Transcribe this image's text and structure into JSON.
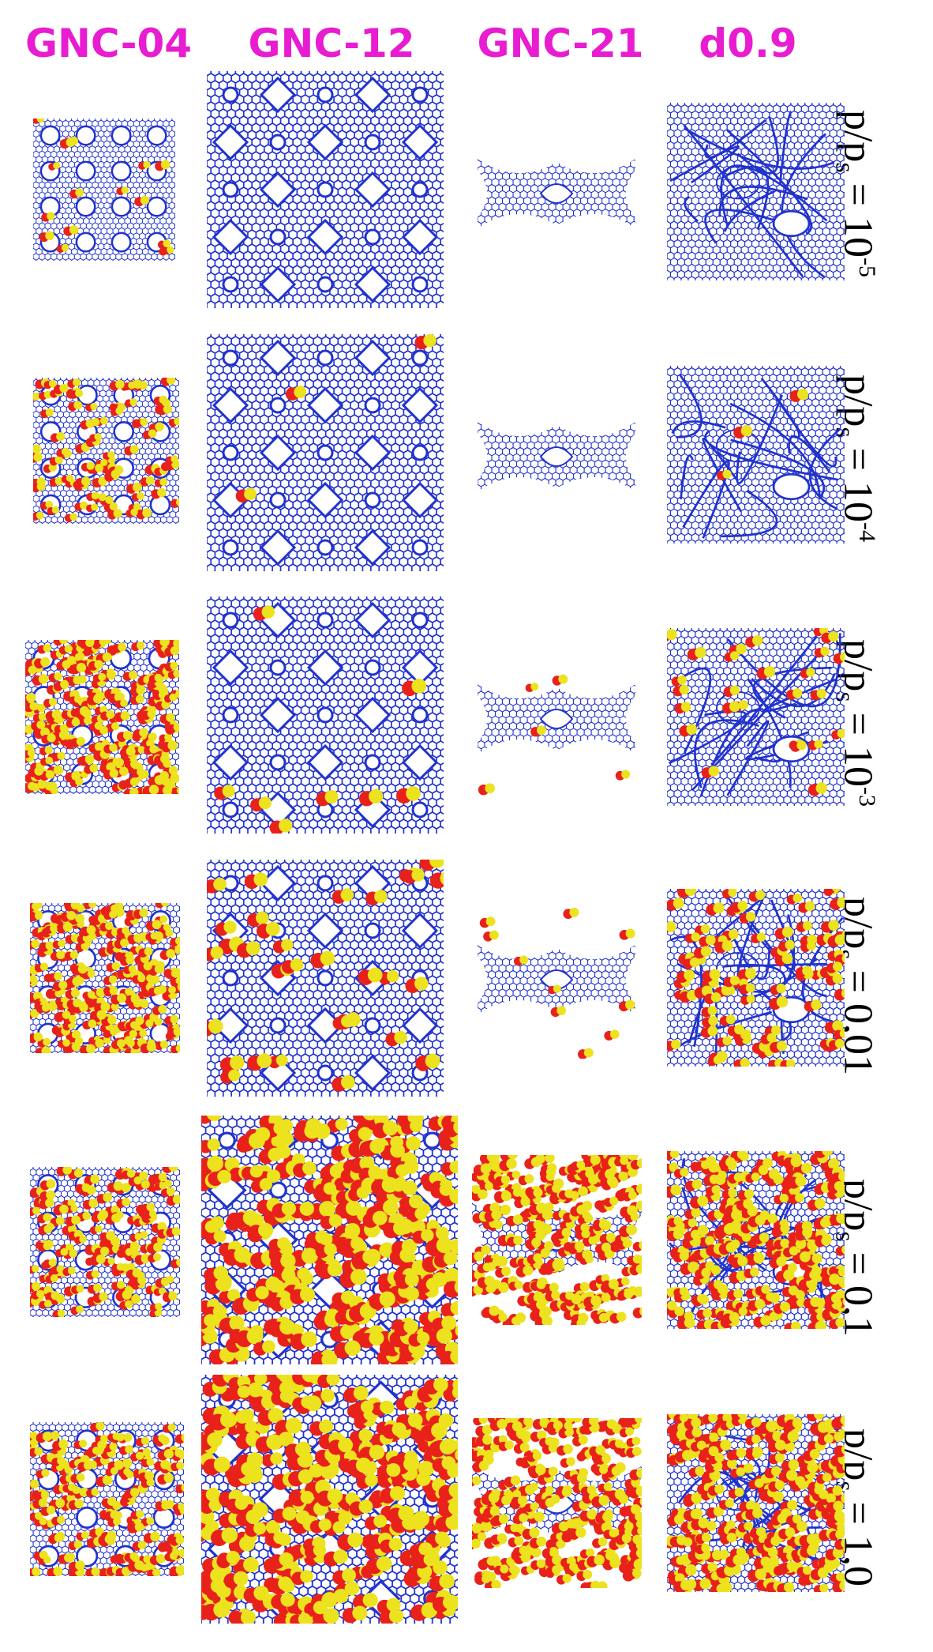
{
  "colors": {
    "header": "#e81cd1",
    "framework": "#2233cc",
    "molecule_primary": "#e8221a",
    "molecule_secondary": "#ece21e"
  },
  "columns": [
    {
      "id": "gnc04",
      "label": "GNC-04"
    },
    {
      "id": "gnc12",
      "label": "GNC-12"
    },
    {
      "id": "gnc21",
      "label": "GNC-21"
    },
    {
      "id": "d09",
      "label": "d0.9"
    }
  ],
  "rows": [
    {
      "id": "r1",
      "label_prefix": "p/p",
      "label_sub": "s",
      "label_eq": " = ",
      "label_base": "10",
      "label_sup": "-5",
      "loading": [
        0.06,
        0.0,
        0.0,
        0.0
      ]
    },
    {
      "id": "r2",
      "label_prefix": "p/p",
      "label_sub": "s",
      "label_eq": " = ",
      "label_base": "10",
      "label_sup": "-4",
      "loading": [
        0.35,
        0.01,
        0.0,
        0.01
      ]
    },
    {
      "id": "r3",
      "label_prefix": "p/p",
      "label_sub": "s",
      "label_eq": " = ",
      "label_base": "10",
      "label_sup": "-3",
      "loading": [
        0.85,
        0.03,
        0.02,
        0.1
      ]
    },
    {
      "id": "r4",
      "label_prefix": "p/p",
      "label_sub": "s",
      "label_eq": " = ",
      "label_base": "0,01",
      "label_sup": "",
      "loading": [
        0.85,
        0.12,
        0.04,
        0.35
      ]
    },
    {
      "id": "r5",
      "label_prefix": "p/p",
      "label_sub": "s",
      "label_eq": " = ",
      "label_base": "0,1",
      "label_sup": "",
      "loading": [
        0.55,
        1.0,
        0.95,
        0.9
      ]
    },
    {
      "id": "r6",
      "label_prefix": "p/p",
      "label_sub": "s",
      "label_eq": " = ",
      "label_base": "1,0",
      "label_sup": "",
      "loading": [
        0.6,
        1.0,
        0.95,
        0.9
      ]
    }
  ]
}
